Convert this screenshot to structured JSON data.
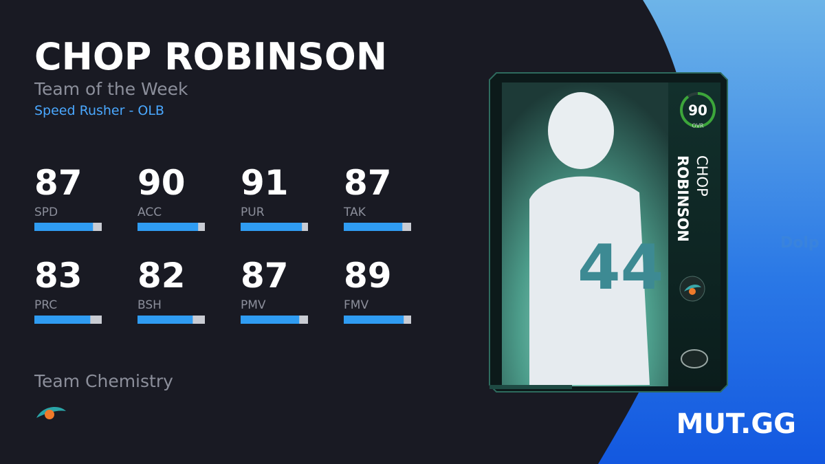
{
  "player": {
    "name": "CHOP ROBINSON",
    "program": "Team of the Week",
    "archetype": "Speed Rusher - OLB"
  },
  "stats": [
    {
      "value": 87,
      "label": "SPD"
    },
    {
      "value": 90,
      "label": "ACC"
    },
    {
      "value": 91,
      "label": "PUR"
    },
    {
      "value": 87,
      "label": "TAK"
    },
    {
      "value": 83,
      "label": "PRC"
    },
    {
      "value": 82,
      "label": "BSH"
    },
    {
      "value": 87,
      "label": "PMV"
    },
    {
      "value": 89,
      "label": "FMV"
    }
  ],
  "chemistry": {
    "title": "Team Chemistry"
  },
  "card": {
    "ovr": 90,
    "ovr_label": "OVR",
    "first_name": "CHOP",
    "last_name": "ROBINSON"
  },
  "brand": "MUT.GG"
}
